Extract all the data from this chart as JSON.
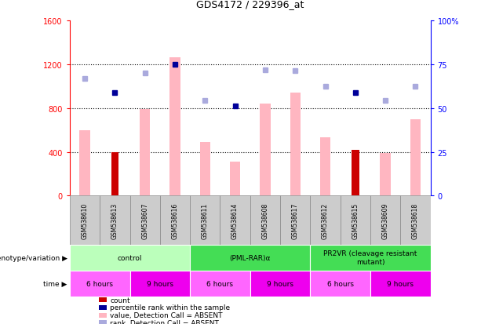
{
  "title": "GDS4172 / 229396_at",
  "samples": [
    "GSM538610",
    "GSM538613",
    "GSM538607",
    "GSM538616",
    "GSM538611",
    "GSM538614",
    "GSM538608",
    "GSM538617",
    "GSM538612",
    "GSM538615",
    "GSM538609",
    "GSM538618"
  ],
  "bar_values_pink": [
    600,
    0,
    790,
    1260,
    490,
    310,
    840,
    940,
    530,
    0,
    390,
    700
  ],
  "bar_values_red": [
    0,
    400,
    0,
    0,
    0,
    0,
    0,
    0,
    0,
    420,
    0,
    0
  ],
  "dot_blue_dark": [
    null,
    940,
    null,
    1200,
    null,
    820,
    null,
    null,
    null,
    940,
    null,
    null
  ],
  "dot_blue_light": [
    1070,
    null,
    1120,
    null,
    870,
    null,
    1150,
    1140,
    1000,
    null,
    870,
    1000
  ],
  "ylim_left": [
    0,
    1600
  ],
  "ylim_right": [
    0,
    100
  ],
  "yticks_left": [
    0,
    400,
    800,
    1200,
    1600
  ],
  "yticks_right": [
    0,
    25,
    50,
    75,
    100
  ],
  "ytick_labels_right": [
    "0",
    "25",
    "50",
    "75",
    "100%"
  ],
  "bar_width": 0.35,
  "red_bar_width": 0.25,
  "genotype_groups": [
    {
      "label": "control",
      "start": 0,
      "end": 4,
      "color": "#BBFFBB"
    },
    {
      "label": "(PML-RAR)α",
      "start": 4,
      "end": 8,
      "color": "#44DD55"
    },
    {
      "label": "PR2VR (cleavage resistant\nmutant)",
      "start": 8,
      "end": 12,
      "color": "#44DD55"
    }
  ],
  "time_groups": [
    {
      "label": "6 hours",
      "start": 0,
      "end": 2,
      "color": "#FF66FF"
    },
    {
      "label": "9 hours",
      "start": 2,
      "end": 4,
      "color": "#EE00EE"
    },
    {
      "label": "6 hours",
      "start": 4,
      "end": 6,
      "color": "#FF66FF"
    },
    {
      "label": "9 hours",
      "start": 6,
      "end": 8,
      "color": "#EE00EE"
    },
    {
      "label": "6 hours",
      "start": 8,
      "end": 10,
      "color": "#FF66FF"
    },
    {
      "label": "9 hours",
      "start": 10,
      "end": 12,
      "color": "#EE00EE"
    }
  ],
  "legend_items": [
    {
      "label": "count",
      "color": "#CC0000"
    },
    {
      "label": "percentile rank within the sample",
      "color": "#000099"
    },
    {
      "label": "value, Detection Call = ABSENT",
      "color": "#FFB6C1"
    },
    {
      "label": "rank, Detection Call = ABSENT",
      "color": "#AAAADD"
    }
  ],
  "gridline_values": [
    400,
    800,
    1200
  ],
  "sample_cell_color": "#CCCCCC",
  "sample_cell_border": "#888888",
  "genotype_label": "genotype/variation",
  "time_label": "time"
}
